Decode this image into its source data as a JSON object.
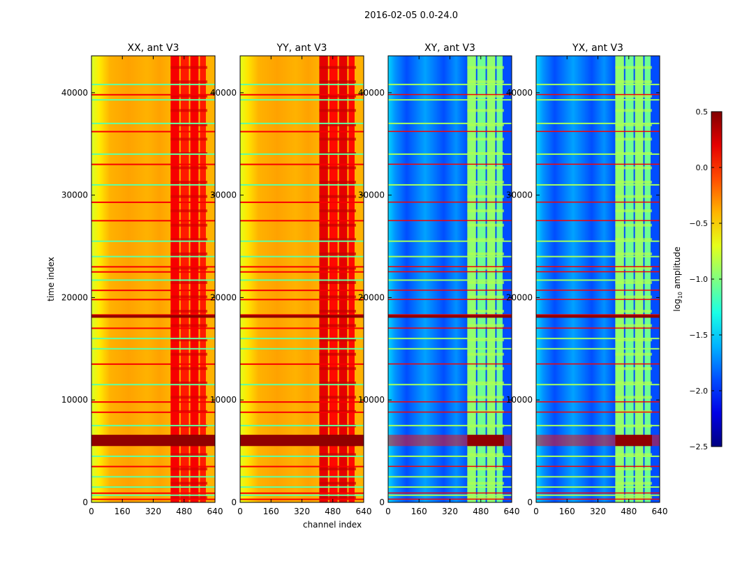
{
  "chart_data": {
    "type": "heatmap",
    "title": "2016-02-05 0.0-24.0",
    "xlabel": "channel index",
    "ylabel": "time index",
    "xlim": [
      0,
      640
    ],
    "ylim": [
      0,
      43600
    ],
    "xticks": [
      "0",
      "160",
      "320",
      "480",
      "640"
    ],
    "xtick_values": [
      0,
      160,
      320,
      480,
      640
    ],
    "yticks": [
      "0",
      "10000",
      "20000",
      "30000",
      "40000"
    ],
    "ytick_values": [
      0,
      10000,
      20000,
      30000,
      40000
    ],
    "colorbar": {
      "label_main": "log",
      "label_sub": "10",
      "label_rest": " amplitude",
      "range": [
        -2.5,
        0.5
      ],
      "ticks": [
        "0.5",
        "0.0",
        "−0.5",
        "−1.0",
        "−1.5",
        "−2.0",
        "−2.5"
      ],
      "tick_values": [
        0.5,
        0.0,
        -0.5,
        -1.0,
        -1.5,
        -2.0,
        -2.5
      ],
      "colormap": "jet"
    },
    "panels": [
      {
        "title": "XX, ant V3",
        "base_level": -0.4,
        "edge_level": -0.75,
        "band_level": 0.15
      },
      {
        "title": "YY, ant V3",
        "base_level": -0.4,
        "edge_level": -0.7,
        "band_level": 0.2
      },
      {
        "title": "XY, ant V3",
        "base_level": -1.9,
        "edge_level": -1.5,
        "band_level": -0.95
      },
      {
        "title": "YX, ant V3",
        "base_level": -1.9,
        "edge_level": -1.5,
        "band_level": -0.95
      }
    ],
    "rfi_channel_band": [
      410,
      600
    ],
    "band_gaps": [
      462,
      512,
      562
    ],
    "hot_rows": [
      39800,
      36200,
      33000,
      29300,
      27500,
      23000,
      22500,
      20700,
      19800,
      18300,
      17000,
      13500,
      9800,
      8800,
      3500,
      900,
      300
    ],
    "hot_block": [
      5500,
      6600
    ],
    "flag_rows": [
      40800,
      39300,
      37000,
      34000,
      31000,
      25500,
      24000,
      21700,
      16000,
      15000,
      11500,
      7500,
      4500,
      2500,
      1500,
      700
    ]
  }
}
